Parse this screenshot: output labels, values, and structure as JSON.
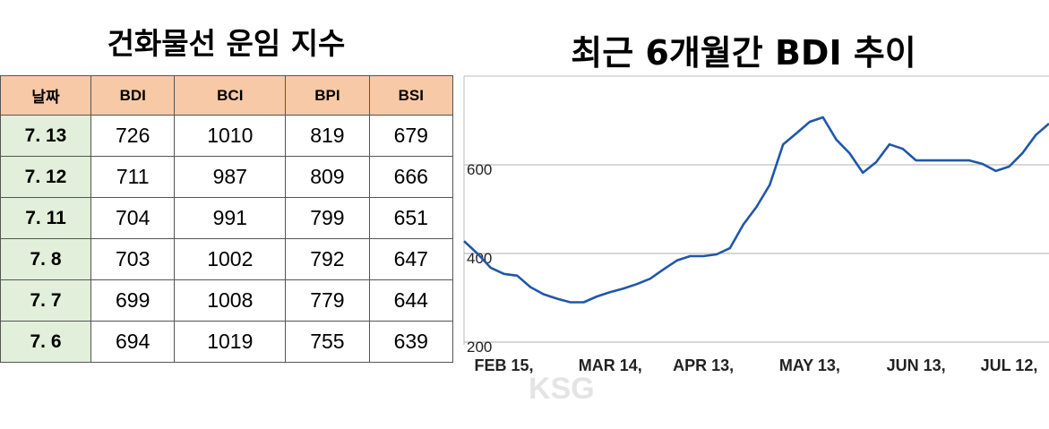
{
  "table": {
    "title": "건화물선 운임 지수",
    "header": [
      "날짜",
      "BDI",
      "BCI",
      "BPI",
      "BSI"
    ],
    "rows": [
      [
        "7. 13",
        "726",
        "1010",
        "819",
        "679"
      ],
      [
        "7. 12",
        "711",
        "987",
        "809",
        "666"
      ],
      [
        "7. 11",
        "704",
        "991",
        "799",
        "651"
      ],
      [
        "7. 8",
        "703",
        "1002",
        "792",
        "647"
      ],
      [
        "7. 7",
        "699",
        "1008",
        "779",
        "644"
      ],
      [
        "7. 6",
        "694",
        "1019",
        "755",
        "639"
      ]
    ]
  },
  "watermark": "KSG",
  "chart_data": {
    "type": "line",
    "title": "최근 6개월간 BDI 추이",
    "categories": [
      null,
      null,
      null,
      "FEB 15,",
      null,
      null,
      null,
      null,
      null,
      null,
      null,
      "MAR 14,",
      null,
      null,
      null,
      null,
      null,
      null,
      "APR 13,",
      null,
      null,
      null,
      null,
      null,
      null,
      null,
      "MAY 13,",
      null,
      null,
      null,
      null,
      null,
      null,
      null,
      "JUN 13,",
      null,
      null,
      null,
      null,
      null,
      null,
      "JUL 12,",
      null,
      null,
      null
    ],
    "series": [
      {
        "name": "BDI",
        "color": "#2057a8",
        "values": [
          428,
          400,
          368,
          354,
          350,
          324,
          308,
          298,
          290,
          290,
          303,
          313,
          321,
          331,
          343,
          364,
          384,
          394,
          394,
          398,
          412,
          465,
          505,
          555,
          646,
          671,
          697,
          707,
          657,
          626,
          582,
          606,
          646,
          636,
          610,
          610,
          610,
          610,
          610,
          602,
          586,
          596,
          626,
          667,
          693
        ]
      }
    ],
    "ylim": [
      194,
      800
    ],
    "yticks": [
      200,
      400,
      600
    ],
    "grid": true
  }
}
